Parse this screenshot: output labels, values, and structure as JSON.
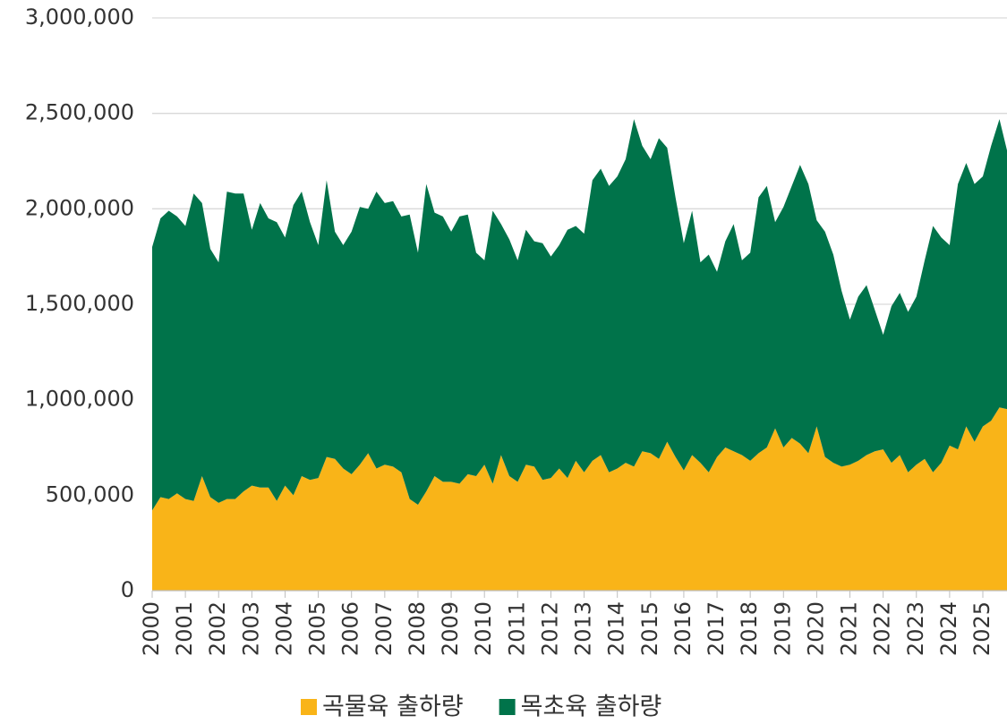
{
  "chart_data": {
    "type": "stacked_area",
    "categories": [
      "2000",
      null,
      null,
      null,
      "2001",
      null,
      null,
      null,
      "2002",
      null,
      null,
      null,
      "2003",
      null,
      null,
      null,
      "2004",
      null,
      null,
      null,
      "2005",
      null,
      null,
      null,
      "2006",
      null,
      null,
      null,
      "2007",
      null,
      null,
      null,
      "2008",
      null,
      null,
      null,
      "2009",
      null,
      null,
      null,
      "2010",
      null,
      null,
      null,
      "2011",
      null,
      null,
      null,
      "2012",
      null,
      null,
      null,
      "2013",
      null,
      null,
      null,
      "2014",
      null,
      null,
      null,
      "2015",
      null,
      null,
      null,
      "2016",
      null,
      null,
      null,
      "2017",
      null,
      null,
      null,
      "2018",
      null,
      null,
      null,
      "2019",
      null,
      null,
      null,
      "2020",
      null,
      null,
      null,
      "2021",
      null,
      null,
      null,
      "2022",
      null,
      null,
      null,
      "2023",
      null,
      null,
      null,
      "2024",
      null,
      null,
      null,
      "2025",
      null,
      null,
      null
    ],
    "series": [
      {
        "name": "곡물육 출하량",
        "color": "#f9b418",
        "values": [
          420000,
          490000,
          480000,
          510000,
          480000,
          470000,
          600000,
          490000,
          460000,
          480000,
          480000,
          520000,
          550000,
          540000,
          540000,
          470000,
          550000,
          500000,
          600000,
          580000,
          590000,
          700000,
          690000,
          640000,
          610000,
          660000,
          720000,
          640000,
          660000,
          650000,
          620000,
          480000,
          450000,
          520000,
          600000,
          570000,
          570000,
          560000,
          610000,
          600000,
          660000,
          560000,
          710000,
          600000,
          570000,
          660000,
          650000,
          580000,
          590000,
          640000,
          590000,
          680000,
          620000,
          680000,
          710000,
          620000,
          640000,
          670000,
          650000,
          730000,
          720000,
          690000,
          780000,
          700000,
          630000,
          710000,
          670000,
          620000,
          700000,
          750000,
          730000,
          710000,
          680000,
          720000,
          750000,
          850000,
          750000,
          800000,
          770000,
          720000,
          860000,
          700000,
          670000,
          650000,
          660000,
          680000,
          710000,
          730000,
          740000,
          670000,
          710000,
          620000,
          660000,
          690000,
          620000,
          670000,
          760000,
          740000,
          860000,
          780000,
          860000,
          890000,
          960000,
          950000
        ]
      },
      {
        "name": "목초육 출하량",
        "color": "#00734a",
        "values": [
          1380000,
          1460000,
          1510000,
          1450000,
          1430000,
          1610000,
          1430000,
          1300000,
          1260000,
          1610000,
          1600000,
          1560000,
          1340000,
          1490000,
          1410000,
          1460000,
          1300000,
          1520000,
          1490000,
          1350000,
          1220000,
          1450000,
          1190000,
          1170000,
          1270000,
          1350000,
          1280000,
          1450000,
          1370000,
          1390000,
          1340000,
          1490000,
          1320000,
          1610000,
          1380000,
          1390000,
          1310000,
          1400000,
          1360000,
          1170000,
          1070000,
          1430000,
          1210000,
          1240000,
          1160000,
          1230000,
          1180000,
          1240000,
          1160000,
          1170000,
          1300000,
          1230000,
          1250000,
          1470000,
          1500000,
          1500000,
          1530000,
          1590000,
          1820000,
          1600000,
          1540000,
          1680000,
          1540000,
          1360000,
          1190000,
          1280000,
          1050000,
          1140000,
          970000,
          1080000,
          1190000,
          1020000,
          1090000,
          1340000,
          1370000,
          1080000,
          1260000,
          1320000,
          1460000,
          1410000,
          1080000,
          1180000,
          1090000,
          920000,
          760000,
          860000,
          890000,
          740000,
          600000,
          820000,
          850000,
          840000,
          880000,
          1040000,
          1290000,
          1180000,
          1050000,
          1390000,
          1380000,
          1350000,
          1310000,
          1440000,
          1510000,
          1340000
        ]
      }
    ],
    "ylim": [
      0,
      3000000
    ],
    "yticks": [
      0,
      {
        "value": 500000,
        "label": "500,000"
      },
      {
        "value": 1000000,
        "label": "1,000,000"
      },
      {
        "value": 1500000,
        "label": "1,500,000"
      },
      {
        "value": 2000000,
        "label": "2,000,000"
      },
      {
        "value": 2500000,
        "label": "2,500,000"
      },
      {
        "value": 3000000,
        "label": "3,000,000"
      }
    ],
    "grid": true,
    "legend": "bottom"
  }
}
